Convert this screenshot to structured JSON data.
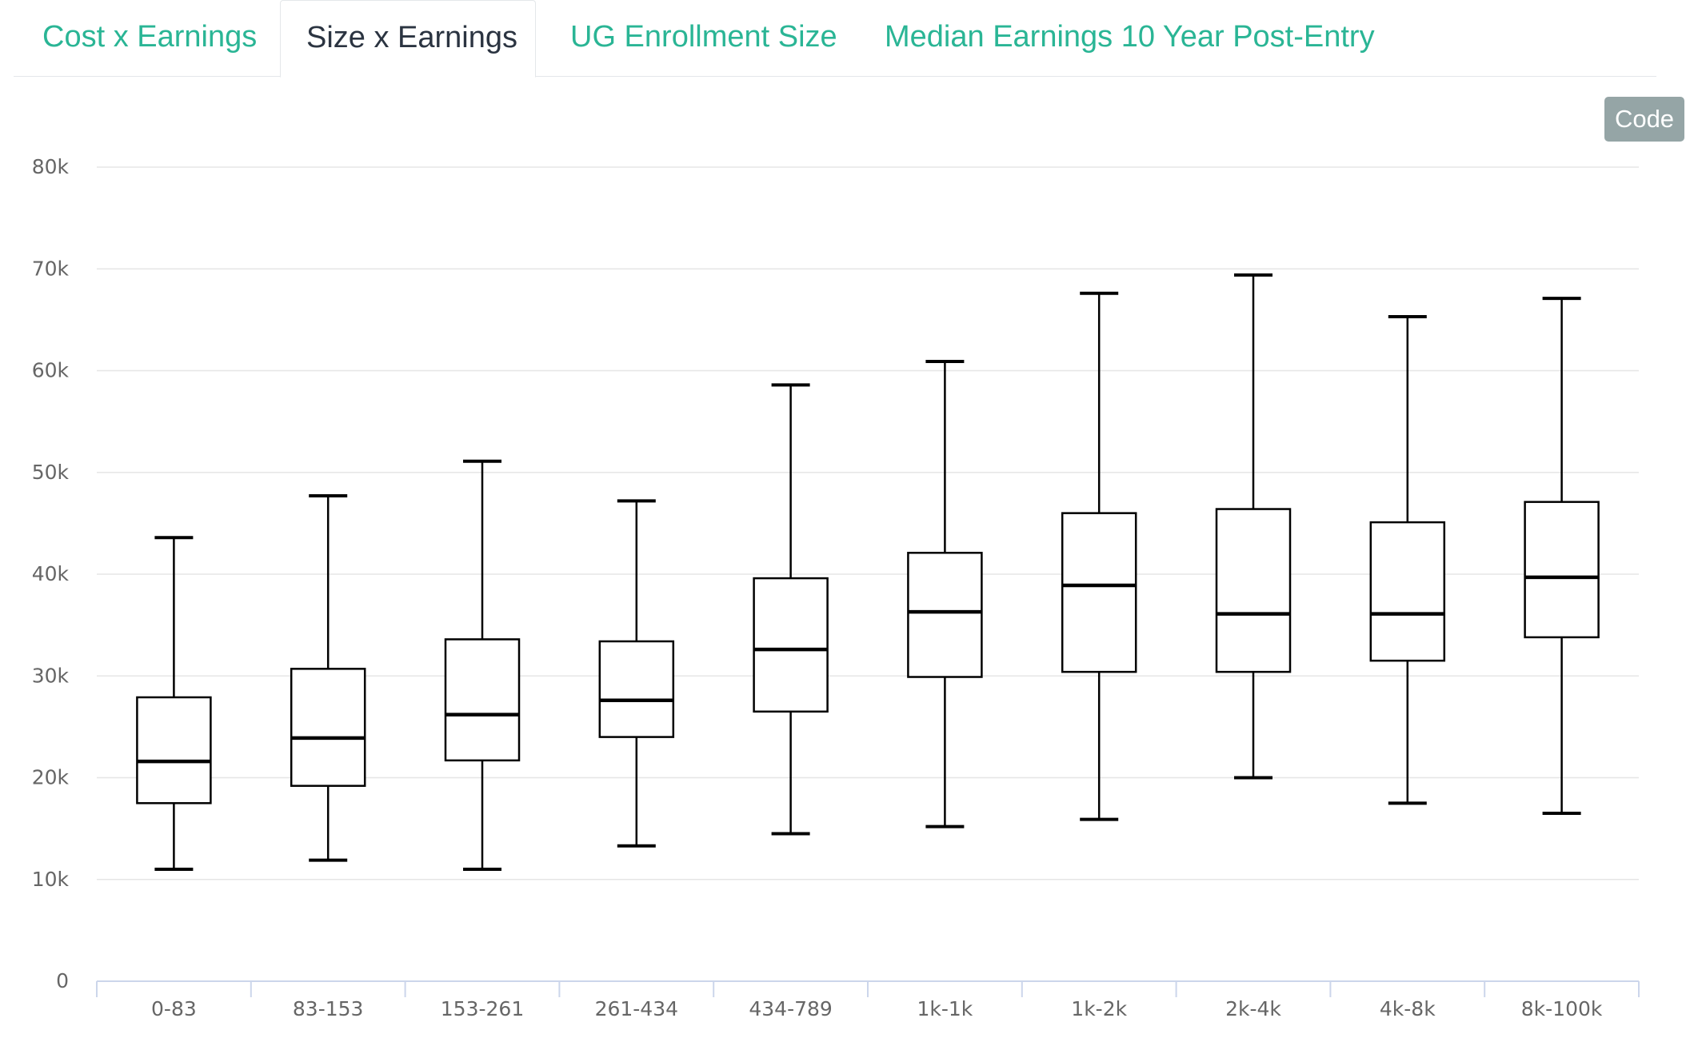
{
  "tabs": [
    {
      "label": "Cost x Earnings",
      "active": false
    },
    {
      "label": "Size x Earnings",
      "active": true
    },
    {
      "label": "UG Enrollment Size",
      "active": false
    },
    {
      "label": "Median Earnings 10 Year Post-Entry",
      "active": false
    }
  ],
  "code_button": {
    "label": "Code"
  },
  "colors": {
    "tab_link": "#2ab595",
    "tab_active": "#2b3441",
    "code_button_bg": "#95a5a6",
    "grid": "#e6e6e6",
    "axis": "#ccd6eb",
    "box_stroke": "#000000",
    "tick_label": "#666666"
  },
  "chart_data": {
    "type": "boxplot",
    "title": "",
    "xlabel": "",
    "ylabel": "",
    "ylim": [
      0,
      80000
    ],
    "yticks": [
      0,
      10000,
      20000,
      30000,
      40000,
      50000,
      60000,
      70000,
      80000
    ],
    "ytick_labels": [
      "0",
      "10k",
      "20k",
      "30k",
      "40k",
      "50k",
      "60k",
      "70k",
      "80k"
    ],
    "grid": true,
    "categories": [
      "0-83",
      "83-153",
      "153-261",
      "261-434",
      "434-789",
      "1k-1k",
      "1k-2k",
      "2k-4k",
      "4k-8k",
      "8k-100k"
    ],
    "series": [
      {
        "name": "Median Earnings 10 Year Post-Entry",
        "boxes": [
          {
            "low": 11000,
            "q1": 17500,
            "median": 21600,
            "q3": 27900,
            "high": 43600
          },
          {
            "low": 11900,
            "q1": 19200,
            "median": 23900,
            "q3": 30700,
            "high": 47700
          },
          {
            "low": 11000,
            "q1": 21700,
            "median": 26200,
            "q3": 33600,
            "high": 51100
          },
          {
            "low": 13300,
            "q1": 24000,
            "median": 27600,
            "q3": 33400,
            "high": 47200
          },
          {
            "low": 14500,
            "q1": 26500,
            "median": 32600,
            "q3": 39600,
            "high": 58600
          },
          {
            "low": 15200,
            "q1": 29900,
            "median": 36300,
            "q3": 42100,
            "high": 60900
          },
          {
            "low": 15900,
            "q1": 30400,
            "median": 38900,
            "q3": 46000,
            "high": 67600
          },
          {
            "low": 20000,
            "q1": 30400,
            "median": 36100,
            "q3": 46400,
            "high": 69400
          },
          {
            "low": 17500,
            "q1": 31500,
            "median": 36100,
            "q3": 45100,
            "high": 65300
          },
          {
            "low": 16500,
            "q1": 33800,
            "median": 39700,
            "q3": 47100,
            "high": 67100
          }
        ]
      }
    ]
  }
}
